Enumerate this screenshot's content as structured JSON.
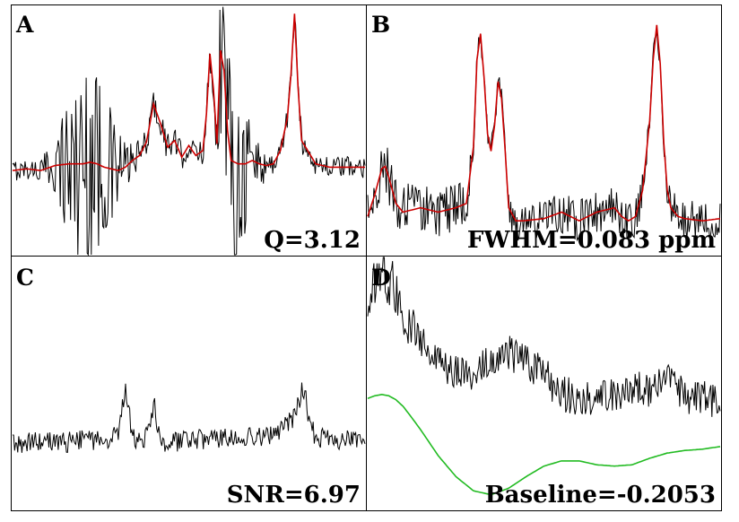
{
  "chart_data": [
    {
      "type": "line",
      "panel": "A",
      "annotation": "Q=3.12",
      "colors": {
        "data": "#000000",
        "fit": "#cc0000"
      },
      "x": [
        0,
        0.04,
        0.08,
        0.12,
        0.16,
        0.2,
        0.22,
        0.24,
        0.26,
        0.28,
        0.3,
        0.32,
        0.34,
        0.36,
        0.38,
        0.4,
        0.42,
        0.44,
        0.46,
        0.48,
        0.5,
        0.52,
        0.54,
        0.55,
        0.56,
        0.57,
        0.58,
        0.59,
        0.6,
        0.61,
        0.62,
        0.64,
        0.66,
        0.68,
        0.7,
        0.72,
        0.74,
        0.76,
        0.78,
        0.79,
        0.8,
        0.81,
        0.82,
        0.84,
        0.86,
        0.88,
        0.9,
        0.94,
        0.98,
        1.0
      ],
      "series": [
        {
          "values": [
            0.06,
            0.07,
            0.06,
            0.09,
            0.1,
            0.1,
            0.11,
            0.1,
            0.08,
            0.07,
            0.06,
            0.08,
            0.12,
            0.15,
            0.23,
            0.46,
            0.34,
            0.2,
            0.24,
            0.14,
            0.21,
            0.15,
            0.18,
            0.4,
            0.76,
            0.55,
            0.22,
            0.78,
            0.66,
            0.3,
            0.12,
            0.1,
            0.1,
            0.12,
            0.1,
            0.09,
            0.1,
            0.18,
            0.38,
            0.64,
            1.0,
            0.56,
            0.24,
            0.17,
            0.1,
            0.09,
            0.08,
            0.08,
            0.08,
            0.08
          ]
        }
      ],
      "amplitude": [
        0.04,
        0.04,
        0.05,
        0.1,
        0.32,
        0.42,
        0.48,
        0.4,
        0.28,
        0.22,
        0.18,
        0.1,
        0.06,
        0.06,
        0.05,
        0.05,
        0.05,
        0.06,
        0.05,
        0.05,
        0.05,
        0.05,
        0.06,
        0.05,
        0.06,
        0.06,
        0.12,
        0.3,
        0.4,
        0.42,
        0.4,
        0.36,
        0.28,
        0.18,
        0.1,
        0.06,
        0.05,
        0.05,
        0.05,
        0.05,
        0.05,
        0.05,
        0.05,
        0.04,
        0.04,
        0.04,
        0.04,
        0.04,
        0.04,
        0.04
      ],
      "ylim": [
        -0.45,
        1.05
      ]
    },
    {
      "type": "line",
      "panel": "B",
      "annotation": "FWHM=0.083 ppm",
      "colors": {
        "data": "#000000",
        "fit": "#cc0000"
      },
      "x": [
        0,
        0.02,
        0.04,
        0.05,
        0.06,
        0.08,
        0.1,
        0.15,
        0.2,
        0.25,
        0.28,
        0.3,
        0.31,
        0.32,
        0.33,
        0.34,
        0.35,
        0.36,
        0.37,
        0.38,
        0.39,
        0.4,
        0.42,
        0.44,
        0.5,
        0.55,
        0.6,
        0.65,
        0.7,
        0.72,
        0.74,
        0.76,
        0.78,
        0.8,
        0.81,
        0.82,
        0.83,
        0.84,
        0.85,
        0.86,
        0.88,
        0.9,
        0.95,
        1.0
      ],
      "series": [
        {
          "values": [
            0.08,
            0.18,
            0.3,
            0.31,
            0.26,
            0.14,
            0.1,
            0.12,
            0.1,
            0.12,
            0.14,
            0.4,
            0.8,
            0.92,
            0.72,
            0.46,
            0.38,
            0.5,
            0.7,
            0.62,
            0.38,
            0.12,
            0.06,
            0.06,
            0.07,
            0.1,
            0.06,
            0.1,
            0.12,
            0.08,
            0.06,
            0.08,
            0.2,
            0.52,
            0.8,
            0.96,
            0.78,
            0.42,
            0.2,
            0.12,
            0.08,
            0.07,
            0.06,
            0.07
          ]
        }
      ],
      "amplitude": [
        0.08,
        0.08,
        0.08,
        0.08,
        0.08,
        0.08,
        0.08,
        0.08,
        0.07,
        0.07,
        0.06,
        0.04,
        0.03,
        0.03,
        0.03,
        0.03,
        0.03,
        0.03,
        0.03,
        0.03,
        0.03,
        0.05,
        0.06,
        0.06,
        0.06,
        0.06,
        0.06,
        0.06,
        0.06,
        0.06,
        0.06,
        0.06,
        0.05,
        0.03,
        0.03,
        0.03,
        0.03,
        0.03,
        0.04,
        0.06,
        0.06,
        0.06,
        0.06,
        0.06
      ],
      "ylim": [
        -0.1,
        1.05
      ]
    },
    {
      "type": "line",
      "panel": "C",
      "annotation": "SNR=6.97",
      "colors": {
        "data": "#000000"
      },
      "x": [
        0,
        0.05,
        0.1,
        0.15,
        0.2,
        0.25,
        0.28,
        0.3,
        0.31,
        0.32,
        0.33,
        0.34,
        0.36,
        0.38,
        0.39,
        0.4,
        0.41,
        0.42,
        0.44,
        0.5,
        0.55,
        0.6,
        0.65,
        0.7,
        0.74,
        0.76,
        0.78,
        0.8,
        0.82,
        0.83,
        0.84,
        0.85,
        0.86,
        0.88,
        0.9,
        0.95,
        1.0
      ],
      "series": [
        {
          "values": [
            0.0,
            0.01,
            0.02,
            0.01,
            0.02,
            0.02,
            0.04,
            0.06,
            0.17,
            0.32,
            0.18,
            0.04,
            0.02,
            0.04,
            0.1,
            0.22,
            0.12,
            0.03,
            0.01,
            0.02,
            0.03,
            0.03,
            0.04,
            0.04,
            0.05,
            0.07,
            0.1,
            0.15,
            0.28,
            0.26,
            0.16,
            0.08,
            0.04,
            0.03,
            0.02,
            0.02,
            0.01
          ]
        }
      ],
      "amplitude": 0.035,
      "ylim": [
        -0.35,
        1.0
      ]
    },
    {
      "type": "line",
      "panel": "D",
      "annotation": "Baseline=-0.2053",
      "colors": {
        "data": "#000000",
        "baseline": "#22bb22"
      },
      "x": [
        0,
        0.02,
        0.04,
        0.06,
        0.08,
        0.1,
        0.12,
        0.15,
        0.2,
        0.25,
        0.3,
        0.35,
        0.4,
        0.45,
        0.5,
        0.55,
        0.6,
        0.65,
        0.7,
        0.75,
        0.8,
        0.85,
        0.9,
        0.95,
        1.0
      ],
      "series": [
        {
          "values": [
            0.68,
            0.86,
            0.95,
            0.9,
            0.76,
            0.64,
            0.54,
            0.4,
            0.24,
            0.16,
            0.14,
            0.26,
            0.3,
            0.24,
            0.14,
            0.0,
            -0.04,
            -0.02,
            0.0,
            0.02,
            0.04,
            0.12,
            -0.02,
            -0.04,
            -0.06
          ]
        },
        {
          "values": [
            -0.04,
            -0.02,
            -0.01,
            -0.02,
            -0.05,
            -0.1,
            -0.17,
            -0.28,
            -0.48,
            -0.64,
            -0.75,
            -0.78,
            -0.73,
            -0.64,
            -0.56,
            -0.52,
            -0.52,
            -0.55,
            -0.56,
            -0.55,
            -0.5,
            -0.46,
            -0.44,
            -0.43,
            -0.41
          ]
        }
      ],
      "amplitude": [
        0.1,
        0.12,
        0.14,
        0.14,
        0.14,
        0.12,
        0.12,
        0.1,
        0.1,
        0.08,
        0.08,
        0.08,
        0.09,
        0.09,
        0.09,
        0.09,
        0.09,
        0.09,
        0.09,
        0.09,
        0.09,
        0.09,
        0.09,
        0.09,
        0.09
      ],
      "ylim": [
        -0.9,
        1.05
      ]
    }
  ]
}
